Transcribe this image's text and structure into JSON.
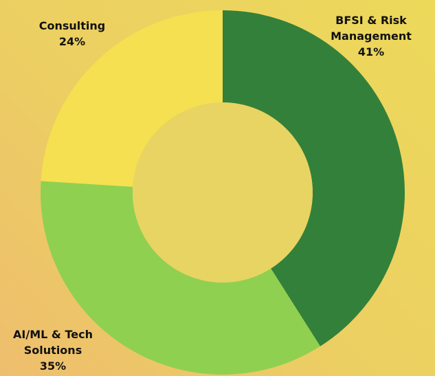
{
  "chart_data": {
    "type": "donut",
    "categories": [
      "BFSI & Risk Management",
      "AI/ML & Tech Solutions",
      "Consulting"
    ],
    "values": [
      41,
      35,
      24
    ],
    "value_labels": [
      "41%",
      "35%",
      "24%"
    ],
    "colors": [
      "#33803a",
      "#90d050",
      "#f4e050"
    ]
  }
}
